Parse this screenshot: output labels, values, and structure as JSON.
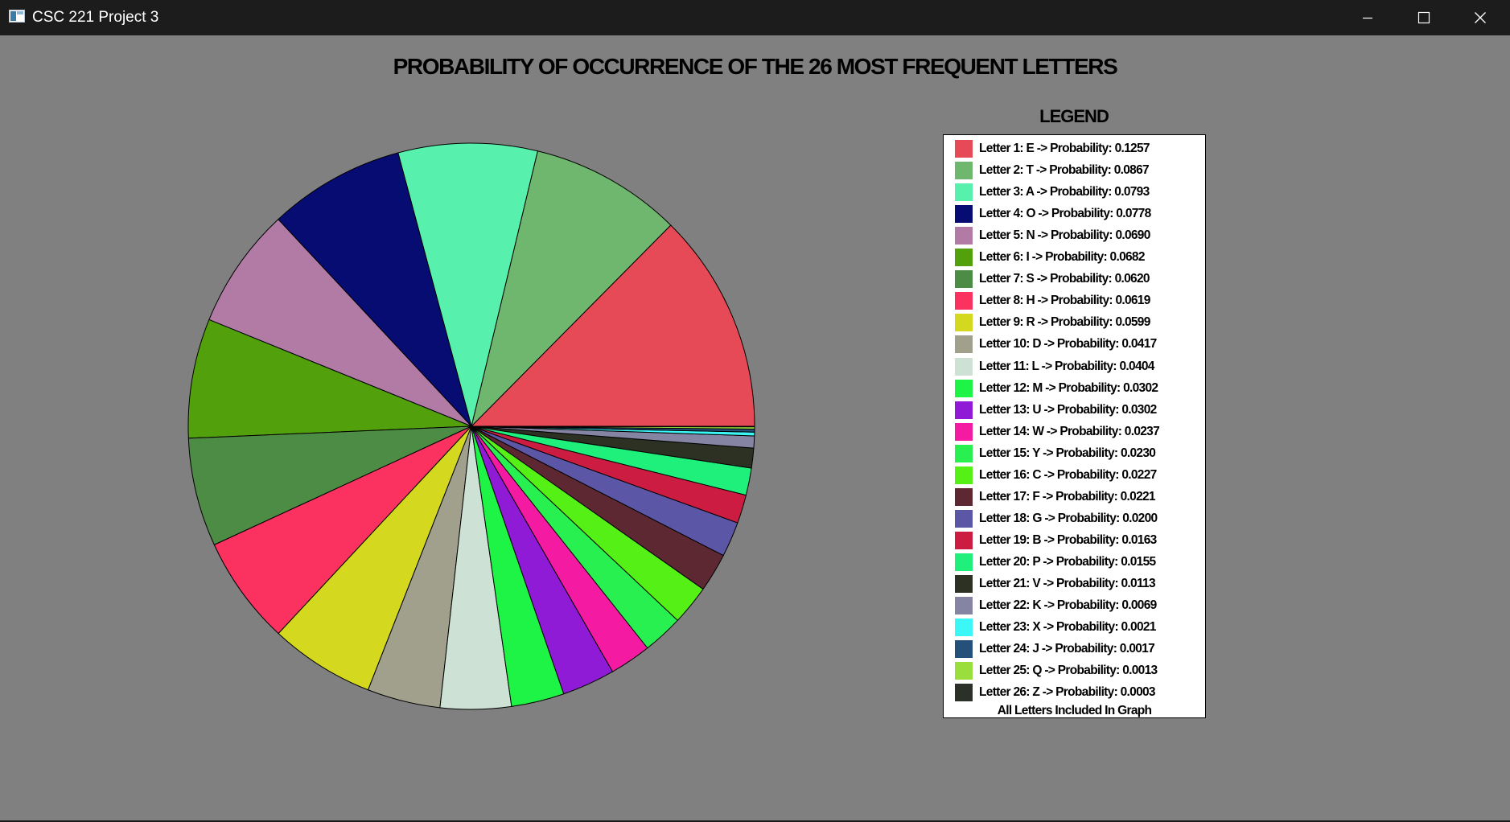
{
  "window": {
    "title": "CSC 221 Project 3",
    "buttons": [
      "minimize",
      "maximize",
      "close"
    ]
  },
  "icons": {
    "app": "app-window-icon",
    "minimize": "minimize-icon",
    "maximize": "maximize-icon",
    "close": "close-icon"
  },
  "colors": {
    "background": "#808080",
    "titlebar": "#1c1c1c"
  },
  "chart_data": {
    "type": "pie",
    "title": "PROBABILITY OF OCCURRENCE OF THE 26 MOST FREQUENT LETTERS",
    "legend_title": "LEGEND",
    "legend_placement": "right",
    "legend_footer": "All Letters Included In Graph",
    "slices": [
      {
        "rank": 1,
        "letter": "E",
        "value": 0.1257,
        "color": "#e64a56",
        "label": "Letter 1: E -> Probability: 0.1257"
      },
      {
        "rank": 2,
        "letter": "T",
        "value": 0.0867,
        "color": "#6fb76f",
        "label": "Letter 2: T -> Probability: 0.0867"
      },
      {
        "rank": 3,
        "letter": "A",
        "value": 0.0793,
        "color": "#58f0ad",
        "label": "Letter 3: A -> Probability: 0.0793"
      },
      {
        "rank": 4,
        "letter": "O",
        "value": 0.0778,
        "color": "#070c73",
        "label": "Letter 4: O -> Probability: 0.0778"
      },
      {
        "rank": 5,
        "letter": "N",
        "value": 0.069,
        "color": "#b17ba6",
        "label": "Letter 5: N -> Probability: 0.0690"
      },
      {
        "rank": 6,
        "letter": "I",
        "value": 0.0682,
        "color": "#52a00c",
        "label": "Letter 6: I -> Probability: 0.0682"
      },
      {
        "rank": 7,
        "letter": "S",
        "value": 0.062,
        "color": "#4d8c44",
        "label": "Letter 7: S -> Probability: 0.0620"
      },
      {
        "rank": 8,
        "letter": "H",
        "value": 0.0619,
        "color": "#fb325f",
        "label": "Letter 8: H -> Probability: 0.0619"
      },
      {
        "rank": 9,
        "letter": "R",
        "value": 0.0599,
        "color": "#d4d920",
        "label": "Letter 9: R -> Probability: 0.0599"
      },
      {
        "rank": 10,
        "letter": "D",
        "value": 0.0417,
        "color": "#a1a08d",
        "label": "Letter 10: D -> Probability: 0.0417"
      },
      {
        "rank": 11,
        "letter": "L",
        "value": 0.0404,
        "color": "#cde1d4",
        "label": "Letter 11: L -> Probability: 0.0404"
      },
      {
        "rank": 12,
        "letter": "M",
        "value": 0.0302,
        "color": "#1ef445",
        "label": "Letter 12: M -> Probability: 0.0302"
      },
      {
        "rank": 13,
        "letter": "U",
        "value": 0.0302,
        "color": "#8f1bd6",
        "label": "Letter 13: U -> Probability: 0.0302"
      },
      {
        "rank": 14,
        "letter": "W",
        "value": 0.0237,
        "color": "#f41aa1",
        "label": "Letter 14: W -> Probability: 0.0237"
      },
      {
        "rank": 15,
        "letter": "Y",
        "value": 0.023,
        "color": "#28f050",
        "label": "Letter 15: Y -> Probability: 0.0230"
      },
      {
        "rank": 16,
        "letter": "C",
        "value": 0.0227,
        "color": "#55f015",
        "label": "Letter 16: C -> Probability: 0.0227"
      },
      {
        "rank": 17,
        "letter": "F",
        "value": 0.0221,
        "color": "#5e2833",
        "label": "Letter 17: F -> Probability: 0.0221"
      },
      {
        "rank": 18,
        "letter": "G",
        "value": 0.02,
        "color": "#5c56a6",
        "label": "Letter 18: G -> Probability: 0.0200"
      },
      {
        "rank": 19,
        "letter": "B",
        "value": 0.0163,
        "color": "#cd1c42",
        "label": "Letter 19: B -> Probability: 0.0163"
      },
      {
        "rank": 20,
        "letter": "P",
        "value": 0.0155,
        "color": "#1ff07b",
        "label": "Letter 20: P -> Probability: 0.0155"
      },
      {
        "rank": 21,
        "letter": "V",
        "value": 0.0113,
        "color": "#2c3124",
        "label": "Letter 21: V -> Probability: 0.0113"
      },
      {
        "rank": 22,
        "letter": "K",
        "value": 0.0069,
        "color": "#8684a3",
        "label": "Letter 22: K -> Probability: 0.0069"
      },
      {
        "rank": 23,
        "letter": "X",
        "value": 0.0021,
        "color": "#3cf7f7",
        "label": "Letter 23: X -> Probability: 0.0021"
      },
      {
        "rank": 24,
        "letter": "J",
        "value": 0.0017,
        "color": "#24507a",
        "label": "Letter 24: J -> Probability: 0.0017"
      },
      {
        "rank": 25,
        "letter": "Q",
        "value": 0.0013,
        "color": "#9ade3e",
        "label": "Letter 25: Q -> Probability: 0.0013"
      },
      {
        "rank": 26,
        "letter": "Z",
        "value": 0.0003,
        "color": "#2b3128",
        "label": "Letter 26: Z -> Probability: 0.0003"
      }
    ]
  }
}
